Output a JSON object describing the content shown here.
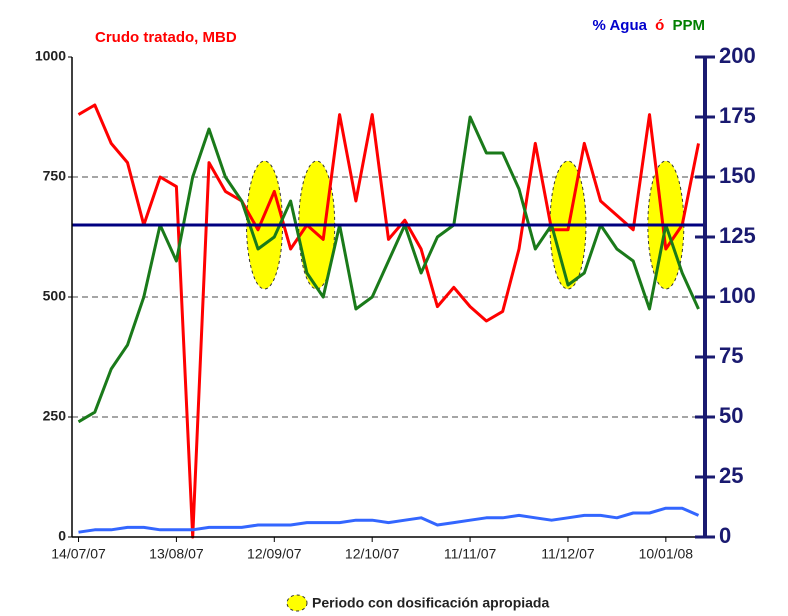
{
  "chart_data": {
    "type": "line",
    "title": "Crudo tratado, MBD",
    "title_color": "#ff0000",
    "y2_label": [
      {
        "text": "% Agua",
        "color": "#0000cc"
      },
      {
        "text": "ó",
        "color": "#ff0000"
      },
      {
        "text": "PPM",
        "color": "#008000"
      }
    ],
    "x": [
      "14/07/07",
      "19/07/07",
      "24/07/07",
      "29/07/07",
      "03/08/07",
      "08/08/07",
      "13/08/07",
      "18/08/07",
      "23/08/07",
      "28/08/07",
      "02/09/07",
      "07/09/07",
      "12/09/07",
      "17/09/07",
      "22/09/07",
      "27/09/07",
      "02/10/07",
      "07/10/07",
      "12/10/07",
      "17/10/07",
      "22/10/07",
      "27/10/07",
      "01/11/07",
      "06/11/07",
      "11/11/07",
      "16/11/07",
      "21/11/07",
      "26/11/07",
      "01/12/07",
      "06/12/07",
      "11/12/07",
      "16/12/07",
      "21/12/07",
      "26/12/07",
      "31/12/07",
      "05/01/08",
      "10/01/08",
      "15/01/08",
      "20/01/08"
    ],
    "xlim": [
      "12/07/07",
      "22/01/08"
    ],
    "xticks": [
      "14/07/07",
      "13/08/07",
      "12/09/07",
      "12/10/07",
      "11/11/07",
      "11/12/07",
      "10/01/08"
    ],
    "ylim": [
      0,
      1000
    ],
    "yticks": [
      0,
      250,
      500,
      750,
      1000
    ],
    "y2lim": [
      0,
      200
    ],
    "y2ticks": [
      0,
      25,
      50,
      75,
      100,
      125,
      150,
      175,
      200
    ],
    "grid": true,
    "series": [
      {
        "name": "Crudo tratado",
        "color": "#ff0000",
        "values": [
          880,
          900,
          820,
          780,
          650,
          750,
          730,
          0,
          780,
          720,
          700,
          640,
          720,
          600,
          650,
          620,
          880,
          700,
          880,
          620,
          660,
          600,
          480,
          520,
          480,
          450,
          470,
          600,
          820,
          640,
          640,
          820,
          700,
          670,
          640,
          880,
          600,
          650,
          820
        ]
      },
      {
        "name": "PPM",
        "color": "#1a7a1a",
        "axis": "y2",
        "values": [
          48,
          52,
          70,
          80,
          100,
          130,
          115,
          150,
          170,
          150,
          140,
          120,
          125,
          140,
          110,
          100,
          130,
          95,
          100,
          115,
          130,
          110,
          125,
          130,
          175,
          160,
          160,
          145,
          120,
          130,
          105,
          110,
          130,
          120,
          115,
          95,
          130,
          110,
          95
        ]
      },
      {
        "name": "% Agua",
        "color": "#3366ff",
        "axis": "y2",
        "values": [
          2,
          3,
          3,
          4,
          4,
          3,
          3,
          3,
          4,
          4,
          4,
          5,
          5,
          5,
          6,
          6,
          6,
          7,
          7,
          6,
          7,
          8,
          5,
          6,
          7,
          8,
          8,
          9,
          8,
          7,
          8,
          9,
          9,
          8,
          10,
          10,
          12,
          12,
          9
        ]
      }
    ],
    "reference_line": {
      "value": 650,
      "color": "#000080"
    },
    "highlights": {
      "label": "Periodo con dosificación apropiada",
      "color": "#ffff00",
      "centers": [
        "09/09/07",
        "25/09/07",
        "11/12/07",
        "10/01/08"
      ]
    }
  }
}
